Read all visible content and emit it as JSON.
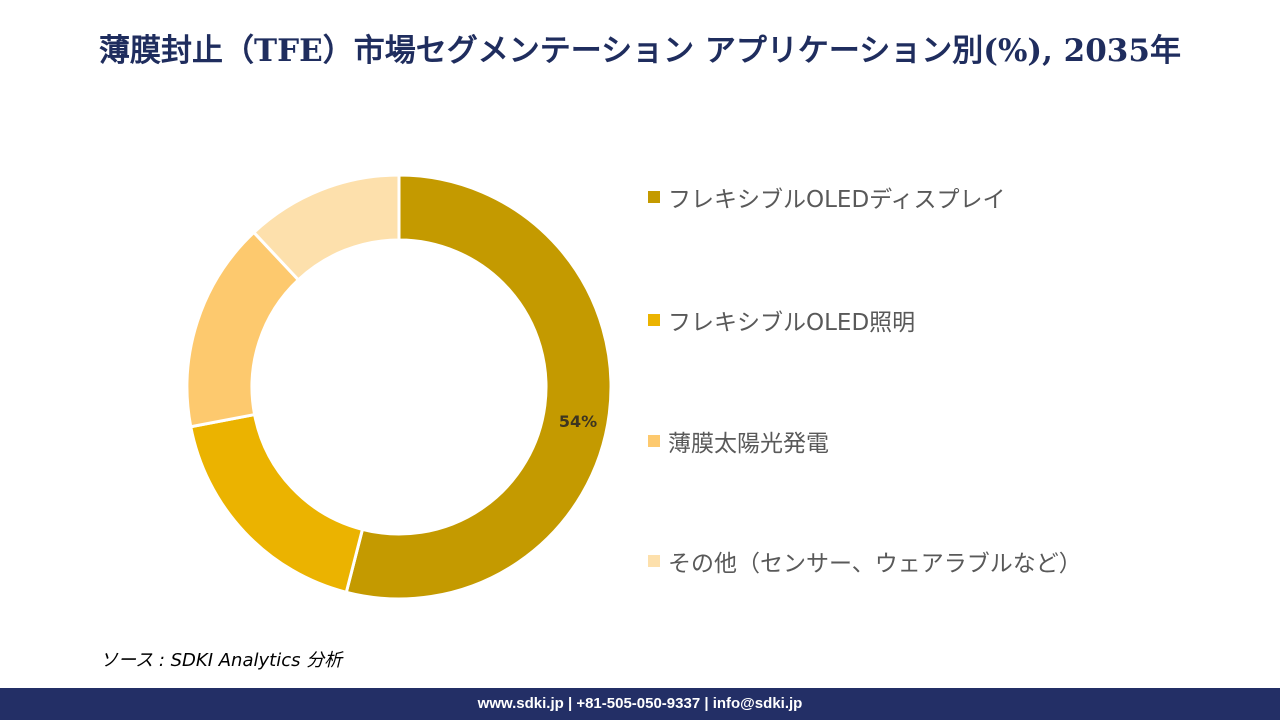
{
  "title": "薄膜封止（TFE）市場セグメンテーション アプリケーション別(%), 2035年",
  "chart_data": {
    "type": "pie",
    "subtype": "donut",
    "title": "薄膜封止（TFE）市場セグメンテーション アプリケーション別(%), 2035年",
    "categories": [
      "フレキシブルOLEDディスプレイ",
      "フレキシブルOLED照明",
      "薄膜太陽光発電",
      "その他（センサー、ウェアラブルなど）"
    ],
    "values": [
      54,
      18,
      16,
      12
    ],
    "colors": [
      "#c49a00",
      "#ebb300",
      "#fdc96e",
      "#fde0ac"
    ],
    "data_labels": [
      "54%",
      "",
      "",
      ""
    ],
    "legend_position": "right"
  },
  "source": "ソース : SDKI Analytics 分析",
  "footer": "www.sdki.jp | +81-505-050-9337 | info@sdki.jp"
}
